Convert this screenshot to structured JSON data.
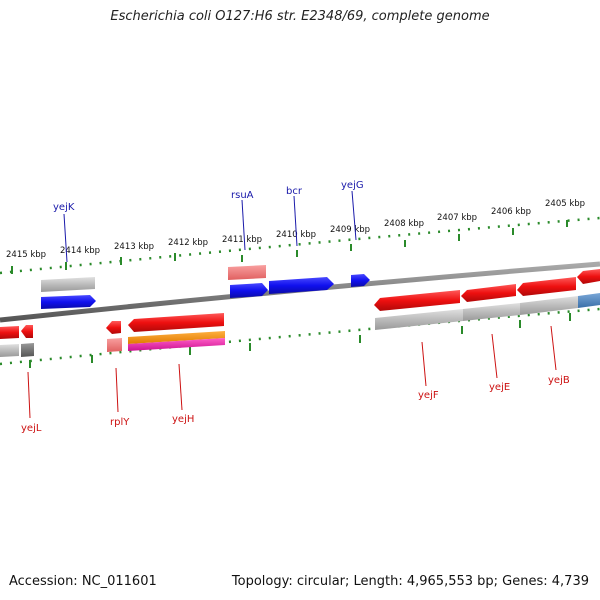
{
  "title": "Escherichia coli O127:H6 str. E2348/69, complete genome",
  "footer": {
    "accession": "Accession: NC_011601",
    "summary": "Topology: circular; Length: 4,965,553 bp; Genes: 4,739"
  },
  "scale_labels": [
    "2415 kbp",
    "2414 kbp",
    "2413 kbp",
    "2412 kbp",
    "2411 kbp",
    "2410 kbp",
    "2409 kbp",
    "2408 kbp",
    "2407 kbp",
    "2406 kbp",
    "2405 kbp"
  ],
  "genes_forward": [
    "yejK",
    "rsuA",
    "bcr",
    "yejG"
  ],
  "genes_reverse": [
    "yejL",
    "rplY",
    "yejH",
    "yejF",
    "yejE",
    "yejB"
  ],
  "colors": {
    "forward_gene": "#1a1aee",
    "reverse_gene": "#ee1111",
    "backbone": "#808080",
    "ticks": "#228822",
    "forward_label": "#1a1aaa",
    "reverse_label": "#cc1111"
  }
}
